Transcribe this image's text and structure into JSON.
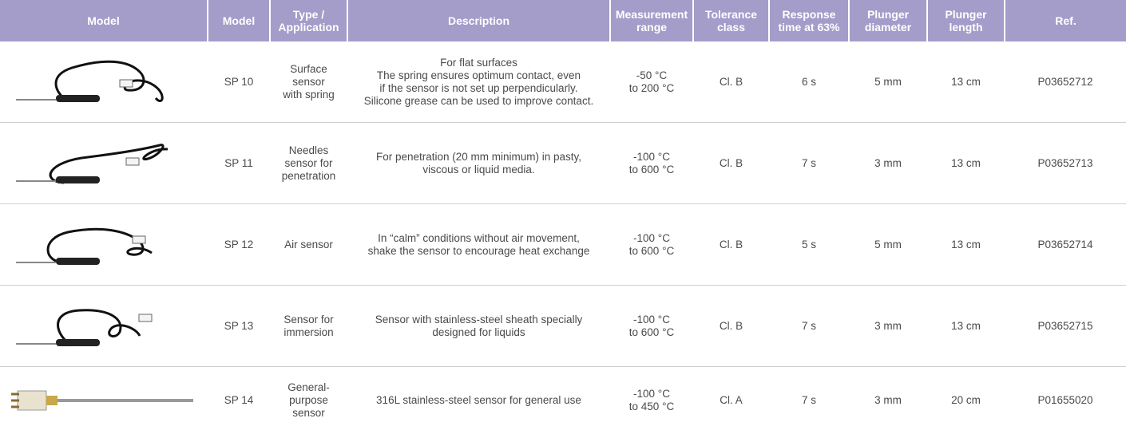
{
  "table": {
    "headers": [
      "Model",
      "Model",
      "Type /\nApplication",
      "Description",
      "Measurement\nrange",
      "Tolerance\nclass",
      "Response\ntime at 63%",
      "Plunger\ndiameter",
      "Plunger\nlength",
      "Ref."
    ],
    "rows": [
      [
        "SP 10",
        "Surface\nsensor\nwith spring",
        "For flat surfaces\nThe spring ensures optimum contact, even\nif the sensor is not set up perpendicularly.\nSilicone grease can be used to improve contact.",
        "-50 °C\nto 200 °C",
        "Cl. B",
        "6 s",
        "5 mm",
        "13 cm",
        "P03652712"
      ],
      [
        "SP 11",
        "Needles\nsensor for\npenetration",
        "For penetration (20 mm minimum) in pasty,\nviscous or liquid media.",
        "-100 °C\nto 600 °C",
        "Cl.  B",
        "7 s",
        "3 mm",
        "13 cm",
        "P03652713"
      ],
      [
        "SP 12",
        "Air sensor",
        "In “calm” conditions without air movement,\nshake the sensor to encourage heat exchange",
        "-100 °C\nto 600 °C",
        "Cl. B",
        "5 s",
        "5 mm",
        "13 cm",
        "P03652714"
      ],
      [
        "SP 13",
        "Sensor for\nimmersion",
        "Sensor with stainless-steel sheath specially\ndesigned for liquids",
        "-100 °C\nto 600 °C",
        "Cl. B",
        "7 s",
        "3 mm",
        "13 cm",
        "P03652715"
      ],
      [
        "SP 14",
        "General-\npurpose\nsensor",
        "316L stainless-steel sensor for general use",
        "-100 °C\nto 450 °C",
        "Cl. A",
        "7 s",
        "3 mm",
        "20 cm",
        "P01655020"
      ]
    ]
  }
}
